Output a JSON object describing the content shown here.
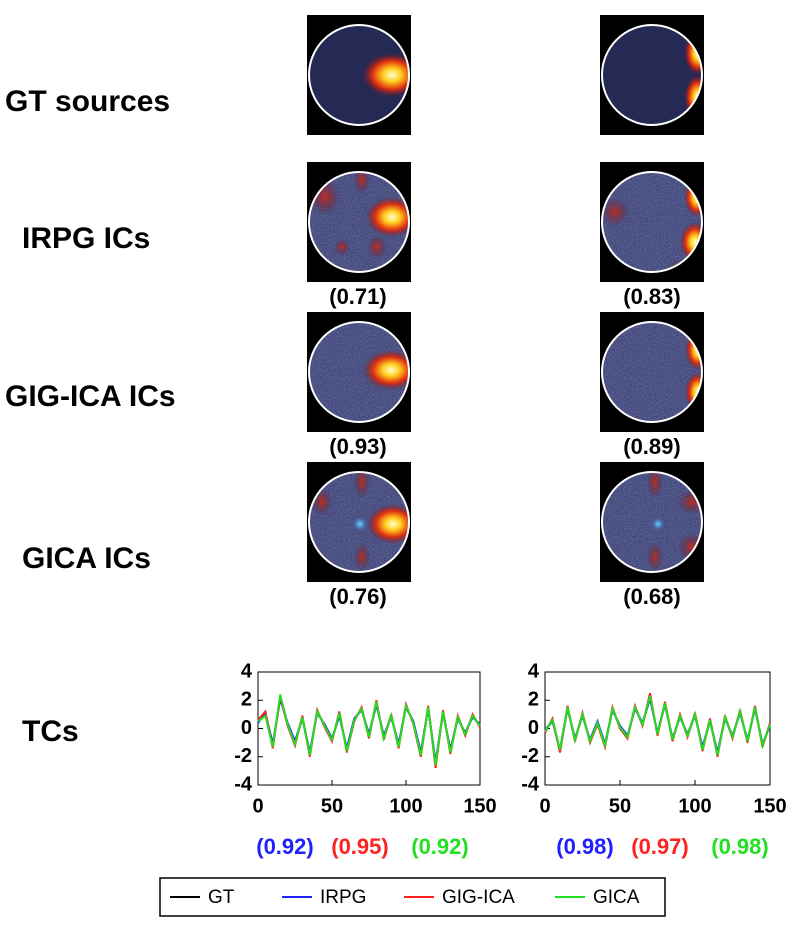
{
  "rows": [
    {
      "label": "GT sources"
    },
    {
      "label": "IRPG ICs",
      "scores": [
        "(0.71)",
        "(0.83)"
      ]
    },
    {
      "label": "GIG-ICA ICs",
      "scores": [
        "(0.93)",
        "(0.89)"
      ]
    },
    {
      "label": "GICA ICs",
      "scores": [
        "(0.76)",
        "(0.68)"
      ]
    }
  ],
  "tcs_label": "TCs",
  "chart_data": [
    {
      "type": "line",
      "x": [
        0,
        5,
        10,
        15,
        20,
        25,
        30,
        35,
        40,
        45,
        50,
        55,
        60,
        65,
        70,
        75,
        80,
        85,
        90,
        95,
        100,
        105,
        110,
        115,
        120,
        125,
        130,
        135,
        140,
        145,
        150
      ],
      "series": [
        {
          "name": "GT",
          "color": "#000000",
          "values": [
            0.5,
            1.0,
            -1.2,
            2.2,
            0.3,
            -1.0,
            0.8,
            -1.8,
            1.2,
            0.2,
            -0.8,
            1.0,
            -1.5,
            0.6,
            1.4,
            -0.5,
            1.8,
            -0.6,
            0.9,
            -1.2,
            1.6,
            0.4,
            -1.8,
            1.5,
            -2.5,
            1.2,
            -1.6,
            0.8,
            -0.4,
            0.9,
            0.2
          ]
        },
        {
          "name": "IRPG",
          "color": "#2020ff",
          "values": [
            0.4,
            1.1,
            -1.1,
            2.1,
            0.4,
            -0.9,
            0.7,
            -1.7,
            1.1,
            0.3,
            -0.7,
            0.9,
            -1.4,
            0.7,
            1.3,
            -0.4,
            1.7,
            -0.5,
            0.8,
            -1.1,
            1.5,
            0.5,
            -1.7,
            1.4,
            -2.4,
            1.1,
            -1.5,
            0.7,
            -0.3,
            0.8,
            0.3
          ]
        },
        {
          "name": "GIG-ICA",
          "color": "#ff2020",
          "values": [
            0.6,
            1.2,
            -1.4,
            2.3,
            0.2,
            -1.2,
            0.9,
            -2.0,
            1.3,
            0.1,
            -0.9,
            1.2,
            -1.7,
            0.5,
            1.5,
            -0.7,
            2.0,
            -0.8,
            1.0,
            -1.4,
            1.7,
            0.3,
            -2.0,
            1.6,
            -2.8,
            1.3,
            -1.8,
            0.9,
            -0.5,
            1.0,
            0.1
          ]
        },
        {
          "name": "GICA",
          "color": "#20e020",
          "values": [
            0.5,
            0.9,
            -1.3,
            2.4,
            0.3,
            -1.1,
            0.8,
            -1.9,
            1.2,
            0.2,
            -0.8,
            1.1,
            -1.6,
            0.6,
            1.4,
            -0.6,
            1.9,
            -0.7,
            0.9,
            -1.3,
            1.6,
            0.4,
            -1.9,
            1.5,
            -2.6,
            1.2,
            -1.7,
            0.8,
            -0.4,
            0.9,
            0.2
          ]
        }
      ],
      "xlim": [
        0,
        150
      ],
      "ylim": [
        -4,
        4
      ],
      "xticks": [
        0,
        50,
        100,
        150
      ],
      "yticks": [
        -4,
        -2,
        0,
        2,
        4
      ],
      "correlations": [
        "(0.92)",
        "(0.95)",
        "(0.92)"
      ]
    },
    {
      "type": "line",
      "x": [
        0,
        5,
        10,
        15,
        20,
        25,
        30,
        35,
        40,
        45,
        50,
        55,
        60,
        65,
        70,
        75,
        80,
        85,
        90,
        95,
        100,
        105,
        110,
        115,
        120,
        125,
        130,
        135,
        140,
        145,
        150
      ],
      "series": [
        {
          "name": "GT",
          "color": "#000000",
          "values": [
            -0.2,
            0.6,
            -1.6,
            1.5,
            -0.8,
            1.0,
            -0.9,
            0.4,
            -1.2,
            1.4,
            0.1,
            -0.6,
            1.5,
            0.3,
            2.2,
            -0.4,
            1.8,
            -0.8,
            0.9,
            -0.5,
            1.0,
            -1.4,
            0.6,
            -1.8,
            0.8,
            -0.6,
            1.2,
            -0.9,
            1.5,
            -1.2,
            0.3
          ]
        },
        {
          "name": "IRPG",
          "color": "#2020ff",
          "values": [
            -0.1,
            0.5,
            -1.5,
            1.4,
            -0.7,
            0.9,
            -0.8,
            0.5,
            -1.1,
            1.3,
            0.2,
            -0.5,
            1.4,
            0.4,
            2.1,
            -0.3,
            1.7,
            -0.7,
            0.8,
            -0.4,
            0.9,
            -1.3,
            0.5,
            -1.7,
            0.7,
            -0.5,
            1.1,
            -0.8,
            1.4,
            -1.1,
            0.2
          ]
        },
        {
          "name": "GIG-ICA",
          "color": "#ff2020",
          "values": [
            -0.3,
            0.7,
            -1.7,
            1.6,
            -0.9,
            1.1,
            -1.0,
            0.3,
            -1.3,
            1.5,
            0.0,
            -0.7,
            1.6,
            0.2,
            2.5,
            -0.5,
            1.9,
            -0.9,
            1.0,
            -0.6,
            1.1,
            -1.6,
            0.7,
            -2.0,
            0.9,
            -0.7,
            1.3,
            -1.0,
            1.6,
            -1.3,
            0.4
          ]
        },
        {
          "name": "GICA",
          "color": "#20e020",
          "values": [
            -0.2,
            0.6,
            -1.5,
            1.5,
            -0.8,
            1.0,
            -0.9,
            0.4,
            -1.2,
            1.4,
            0.1,
            -0.6,
            1.5,
            0.3,
            2.3,
            -0.4,
            1.8,
            -0.8,
            0.9,
            -0.5,
            1.0,
            -1.5,
            0.6,
            -1.9,
            0.8,
            -0.6,
            1.2,
            -0.9,
            1.5,
            -1.2,
            0.3
          ]
        }
      ],
      "xlim": [
        0,
        150
      ],
      "ylim": [
        -4,
        4
      ],
      "xticks": [
        0,
        50,
        100,
        150
      ],
      "yticks": [
        -4,
        -2,
        0,
        2,
        4
      ],
      "correlations": [
        "(0.98)",
        "(0.97)",
        "(0.98)"
      ]
    }
  ]
}
